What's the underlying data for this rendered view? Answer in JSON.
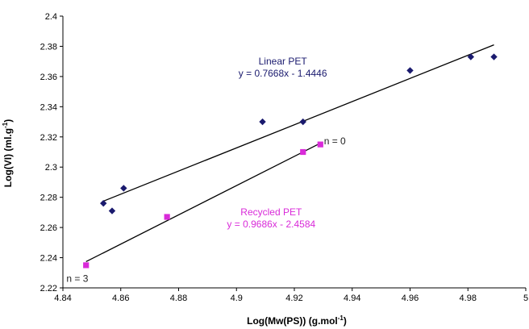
{
  "chart_data": {
    "type": "scatter",
    "xlabel": "Log(Mw(PS)) (g.mol",
    "xlabel_sup": "-1",
    "xlabel_end": ")",
    "ylabel": "Log(VI) (ml.g",
    "ylabel_sup": "-1",
    "ylabel_end": ")",
    "xlim": [
      4.84,
      5.0
    ],
    "ylim": [
      2.22,
      2.4
    ],
    "x_ticks": [
      4.84,
      4.86,
      4.88,
      4.9,
      4.92,
      4.94,
      4.96,
      4.98,
      5.0
    ],
    "x_tick_labels": [
      "4.84",
      "4.86",
      "4.88",
      "4.9",
      "4.92",
      "4.94",
      "4.96",
      "4.98",
      "5"
    ],
    "y_ticks": [
      2.22,
      2.24,
      2.26,
      2.28,
      2.3,
      2.32,
      2.34,
      2.36,
      2.38,
      2.4
    ],
    "y_tick_labels": [
      "2.22",
      "2.24",
      "2.26",
      "2.28",
      "2.3",
      "2.32",
      "2.34",
      "2.36",
      "2.38",
      "2.4"
    ],
    "grid": false,
    "series": [
      {
        "marker": "diamond",
        "color": "#1a1a6e",
        "points": [
          [
            4.854,
            2.276
          ],
          [
            4.857,
            2.271
          ],
          [
            4.861,
            2.286
          ],
          [
            4.909,
            2.33
          ],
          [
            4.923,
            2.33
          ],
          [
            4.96,
            2.364
          ],
          [
            4.981,
            2.373
          ],
          [
            4.989,
            2.373
          ]
        ],
        "trendline": {
          "slope": 0.7668,
          "intercept": -1.4446,
          "x_range": [
            4.854,
            4.989
          ]
        }
      },
      {
        "marker": "square",
        "color": "#d92bd9",
        "points": [
          [
            4.848,
            2.235
          ],
          [
            4.876,
            2.267
          ],
          [
            4.923,
            2.31
          ],
          [
            4.929,
            2.315
          ]
        ],
        "trendline": {
          "slope": 0.9686,
          "intercept": -2.4584,
          "x_range": [
            4.848,
            4.929
          ]
        }
      }
    ],
    "annotations": [
      {
        "text": "Linear PET",
        "x": 4.916,
        "y": 2.368,
        "color": "#1a1a6e"
      },
      {
        "text": "y = 0.7668x - 1.4446",
        "x": 4.916,
        "y": 2.36,
        "color": "#1a1a6e"
      },
      {
        "text": "n = 0",
        "x": 4.934,
        "y": 2.315,
        "color": "#222222"
      },
      {
        "text": "Recycled PET",
        "x": 4.912,
        "y": 2.268,
        "color": "#d92bd9"
      },
      {
        "text": "y = 0.9686x - 2.4584",
        "x": 4.912,
        "y": 2.26,
        "color": "#d92bd9"
      },
      {
        "text": "n = 3",
        "x": 4.845,
        "y": 2.224,
        "color": "#222222"
      }
    ]
  }
}
